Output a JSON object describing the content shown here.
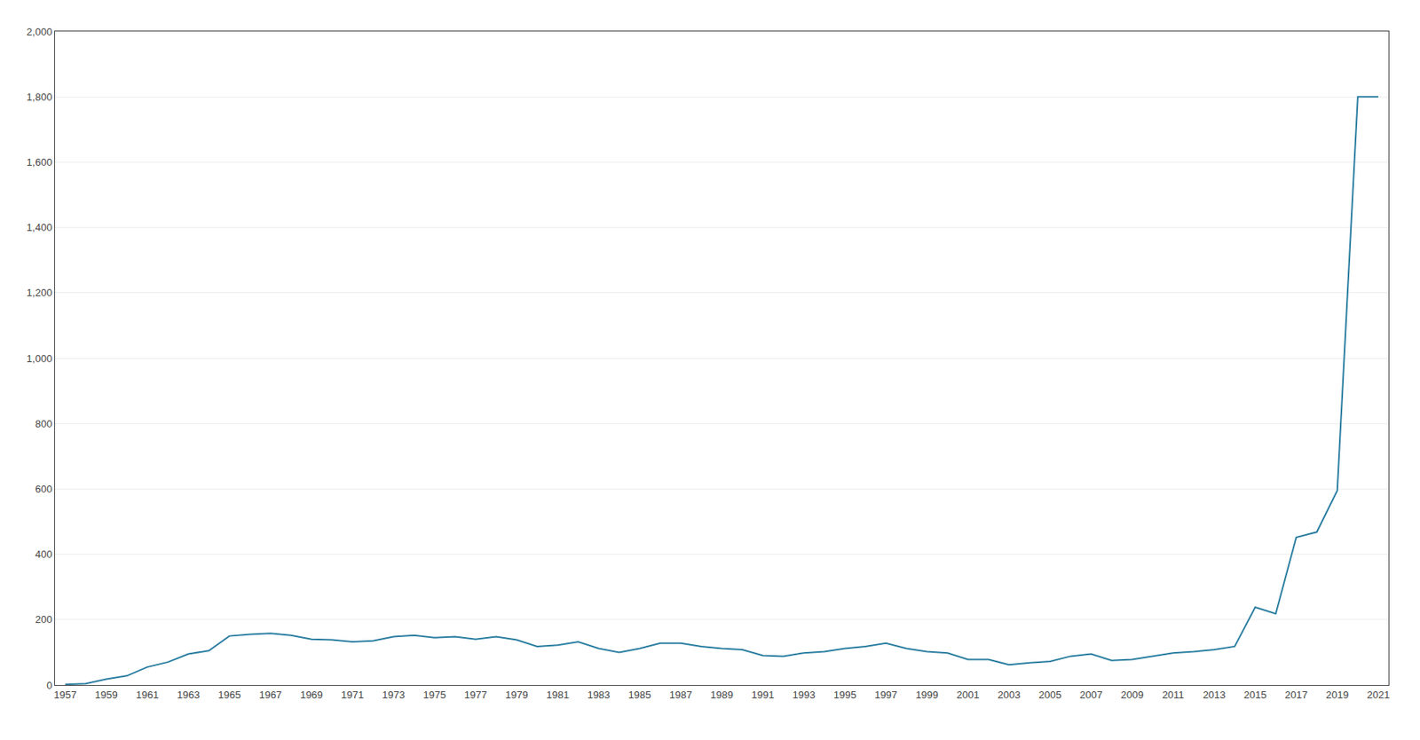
{
  "chart_data": {
    "type": "line",
    "x": [
      1957,
      1958,
      1959,
      1960,
      1961,
      1962,
      1963,
      1964,
      1965,
      1966,
      1967,
      1968,
      1969,
      1970,
      1971,
      1972,
      1973,
      1974,
      1975,
      1976,
      1977,
      1978,
      1979,
      1980,
      1981,
      1982,
      1983,
      1984,
      1985,
      1986,
      1987,
      1988,
      1989,
      1990,
      1991,
      1992,
      1993,
      1994,
      1995,
      1996,
      1997,
      1998,
      1999,
      2000,
      2001,
      2002,
      2003,
      2004,
      2005,
      2006,
      2007,
      2008,
      2009,
      2010,
      2011,
      2012,
      2013,
      2014,
      2015,
      2016,
      2017,
      2018,
      2019,
      2020,
      2021
    ],
    "values": [
      2,
      4,
      18,
      28,
      55,
      70,
      95,
      105,
      150,
      155,
      158,
      152,
      140,
      138,
      132,
      135,
      148,
      152,
      145,
      148,
      140,
      148,
      138,
      118,
      122,
      132,
      112,
      100,
      112,
      128,
      128,
      118,
      112,
      108,
      90,
      88,
      98,
      102,
      112,
      118,
      128,
      112,
      102,
      98,
      78,
      78,
      62,
      68,
      72,
      88,
      95,
      75,
      78,
      88,
      98,
      102,
      108,
      118,
      238,
      218,
      452,
      468,
      595,
      1800,
      1800
    ],
    "color": "#2b7ea1",
    "xlim": [
      1956.5,
      2021.5
    ],
    "xticks": [
      1957,
      1959,
      1961,
      1963,
      1965,
      1967,
      1969,
      1971,
      1973,
      1975,
      1977,
      1979,
      1981,
      1983,
      1985,
      1987,
      1989,
      1991,
      1993,
      1995,
      1997,
      1999,
      2001,
      2003,
      2005,
      2007,
      2009,
      2011,
      2013,
      2015,
      2017,
      2019,
      2021
    ],
    "ylim": [
      0,
      2000
    ],
    "yticks": [
      0,
      200,
      400,
      600,
      800,
      {
        "value": 1000,
        "label": "1,000"
      },
      {
        "value": 1200,
        "label": "1,200"
      },
      {
        "value": 1400,
        "label": "1,400"
      },
      {
        "value": 1600,
        "label": "1,600"
      },
      {
        "value": 1800,
        "label": "1,800"
      },
      {
        "value": 2000,
        "label": "2,000"
      }
    ],
    "grid": true
  }
}
